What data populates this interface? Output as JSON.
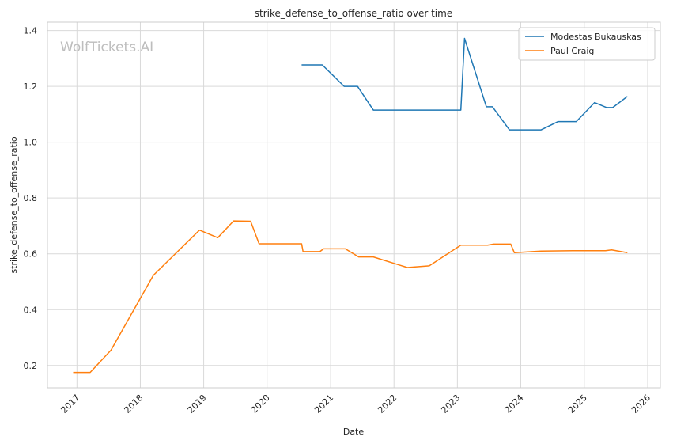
{
  "chart_data": {
    "type": "line",
    "title": "strike_defense_to_offense_ratio over time",
    "xlabel": "Date",
    "ylabel": "strike_defense_to_offense_ratio",
    "watermark": "WolfTickets.AI",
    "x_ticks": [
      "2017",
      "2018",
      "2019",
      "2020",
      "2021",
      "2022",
      "2023",
      "2024",
      "2025",
      "2026"
    ],
    "y_ticks": [
      "0.2",
      "0.4",
      "0.6",
      "0.8",
      "1.0",
      "1.2",
      "1.4"
    ],
    "xlim": [
      "2016-07-15",
      "2026-03-15"
    ],
    "ylim": [
      0.12,
      1.43
    ],
    "grid": true,
    "legend_position": "top-right",
    "series": [
      {
        "name": "Modestas Bukauskas",
        "color": "#1f77b4",
        "points": [
          [
            "2020-07-18",
            1.277
          ],
          [
            "2020-11-14",
            1.277
          ],
          [
            "2021-03-20",
            1.2
          ],
          [
            "2021-06-05",
            1.2
          ],
          [
            "2021-09-04",
            1.115
          ],
          [
            "2023-01-21",
            1.115
          ],
          [
            "2023-02-11",
            1.372
          ],
          [
            "2023-06-17",
            1.127
          ],
          [
            "2023-07-22",
            1.127
          ],
          [
            "2023-10-28",
            1.044
          ],
          [
            "2024-04-27",
            1.044
          ],
          [
            "2024-08-03",
            1.074
          ],
          [
            "2024-11-16",
            1.074
          ],
          [
            "2025-03-01",
            1.142
          ],
          [
            "2025-05-10",
            1.124
          ],
          [
            "2025-06-14",
            1.124
          ],
          [
            "2025-09-06",
            1.164
          ]
        ]
      },
      {
        "name": "Paul Craig",
        "color": "#ff7f0e",
        "points": [
          [
            "2016-12-10",
            0.175
          ],
          [
            "2017-03-18",
            0.175
          ],
          [
            "2017-07-16",
            0.255
          ],
          [
            "2018-03-17",
            0.523
          ],
          [
            "2018-12-08",
            0.685
          ],
          [
            "2019-03-23",
            0.658
          ],
          [
            "2019-06-22",
            0.718
          ],
          [
            "2019-09-28",
            0.717
          ],
          [
            "2019-11-16",
            0.636
          ],
          [
            "2020-07-18",
            0.636
          ],
          [
            "2020-07-26",
            0.608
          ],
          [
            "2020-10-31",
            0.608
          ],
          [
            "2020-11-21",
            0.618
          ],
          [
            "2021-03-27",
            0.618
          ],
          [
            "2021-06-12",
            0.589
          ],
          [
            "2021-09-04",
            0.589
          ],
          [
            "2022-03-19",
            0.551
          ],
          [
            "2022-07-23",
            0.557
          ],
          [
            "2023-01-21",
            0.631
          ],
          [
            "2023-06-24",
            0.631
          ],
          [
            "2023-07-29",
            0.635
          ],
          [
            "2023-11-04",
            0.635
          ],
          [
            "2023-11-25",
            0.604
          ],
          [
            "2024-04-27",
            0.61
          ],
          [
            "2024-10-26",
            0.611
          ],
          [
            "2025-05-03",
            0.611
          ],
          [
            "2025-06-07",
            0.614
          ],
          [
            "2025-09-06",
            0.604
          ]
        ]
      }
    ]
  }
}
